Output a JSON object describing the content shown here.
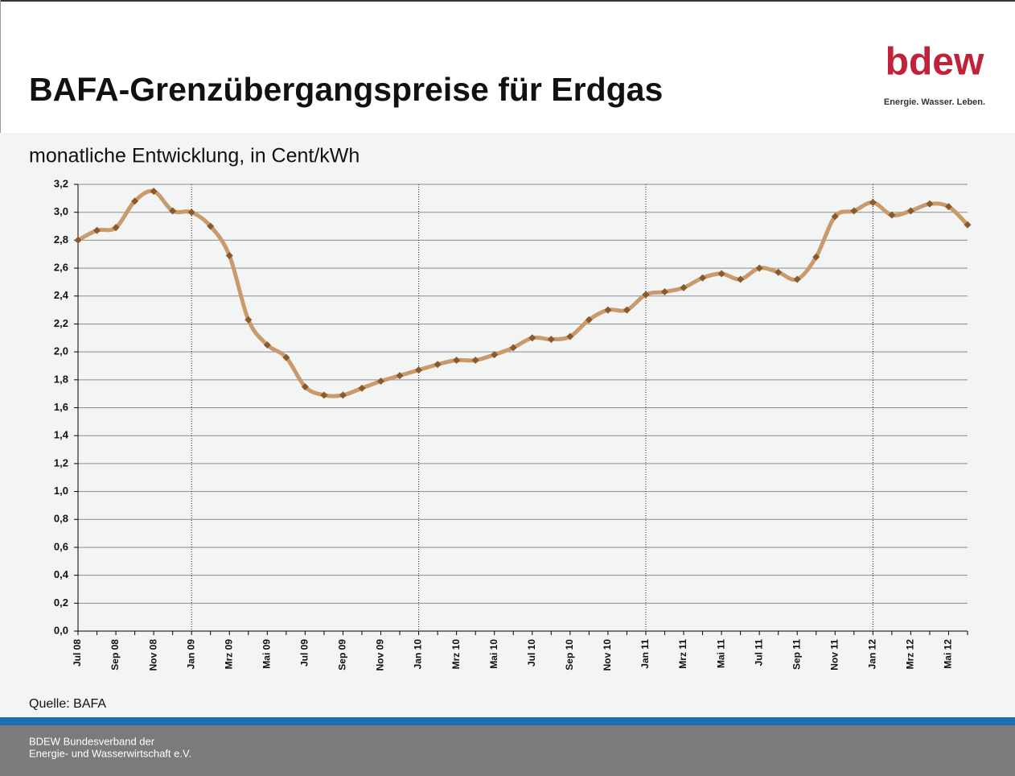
{
  "header": {
    "title": "BAFA-Grenzübergangspreise für Erdgas",
    "logo": "bdew",
    "tagline": "Energie. Wasser. Leben."
  },
  "chart_data": {
    "type": "line",
    "subtitle": "monatliche Entwicklung, in Cent/kWh",
    "categories": [
      "Jul 08",
      null,
      "Sep 08",
      null,
      "Nov 08",
      null,
      "Jan 09",
      null,
      "Mrz 09",
      null,
      "Mai 09",
      null,
      "Jul 09",
      null,
      "Sep 09",
      null,
      "Nov 09",
      null,
      "Jan 10",
      null,
      "Mrz 10",
      null,
      "Mai 10",
      null,
      "Jul 10",
      null,
      "Sep 10",
      null,
      "Nov 10",
      null,
      "Jan 11",
      null,
      "Mrz 11",
      null,
      "Mai 11",
      null,
      "Jul 11",
      null,
      "Sep 11",
      null,
      "Nov 11",
      null,
      "Jan 12",
      null,
      "Mrz 12",
      null,
      "Mai 12",
      null
    ],
    "series": [
      {
        "name": "Grenzübergangspreis",
        "color": "#c99a6c",
        "marker_color": "#8a5a2c",
        "values": [
          2.8,
          2.87,
          2.89,
          3.08,
          3.15,
          3.01,
          3.0,
          2.9,
          2.69,
          2.23,
          2.05,
          1.96,
          1.75,
          1.69,
          1.69,
          1.74,
          1.79,
          1.83,
          1.87,
          1.91,
          1.94,
          1.94,
          1.98,
          2.03,
          2.1,
          2.09,
          2.11,
          2.23,
          2.3,
          2.3,
          2.41,
          2.43,
          2.46,
          2.53,
          2.56,
          2.52,
          2.6,
          2.57,
          2.52,
          2.68,
          2.97,
          3.01,
          3.07,
          2.98,
          3.01,
          3.06,
          3.04,
          2.91
        ]
      }
    ],
    "ylim": [
      0,
      3.2
    ],
    "yticks": [
      {
        "value": 0,
        "label": "0,0"
      },
      {
        "value": 0.2,
        "label": "0,2"
      },
      {
        "value": 0.4,
        "label": "0,4"
      },
      {
        "value": 0.6,
        "label": "0,6"
      },
      {
        "value": 0.8,
        "label": "0,8"
      },
      {
        "value": 1.0,
        "label": "1,0"
      },
      {
        "value": 1.2,
        "label": "1,2"
      },
      {
        "value": 1.4,
        "label": "1,4"
      },
      {
        "value": 1.6,
        "label": "1,6"
      },
      {
        "value": 1.8,
        "label": "1,8"
      },
      {
        "value": 2.0,
        "label": "2,0"
      },
      {
        "value": 2.2,
        "label": "2,2"
      },
      {
        "value": 2.4,
        "label": "2,4"
      },
      {
        "value": 2.6,
        "label": "2,6"
      },
      {
        "value": 2.8,
        "label": "2,8"
      },
      {
        "value": 3.0,
        "label": "3,0"
      },
      {
        "value": 3.2,
        "label": "3,2"
      }
    ],
    "grid": true,
    "source": "Quelle: BAFA"
  },
  "footer": {
    "lines": [
      "BDEW Bundesverband der",
      "Energie- und Wasserwirtschaft e.V."
    ]
  }
}
